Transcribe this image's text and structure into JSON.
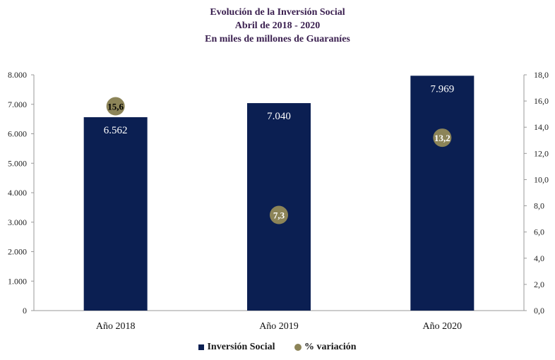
{
  "chart_data": {
    "type": "bar",
    "title": "Evolución de la Inversión Social",
    "subtitle_1": "Abril de 2018 - 2020",
    "subtitle_2": "En miles de millones  de Guaraníes",
    "categories": [
      "Año 2018",
      "Año 2019",
      "Año 2020"
    ],
    "series": [
      {
        "name": "Inversión Social",
        "type": "bar",
        "axis": "left",
        "values": [
          6562,
          7040,
          7969
        ],
        "labels": [
          "6.562",
          "7.040",
          "7.969"
        ],
        "color": "#0b1f52"
      },
      {
        "name": "% variación",
        "type": "scatter",
        "axis": "right",
        "values": [
          15.6,
          7.3,
          13.2
        ],
        "labels": [
          "15,6",
          "7,3",
          "13,2"
        ],
        "color": "#8c8458"
      }
    ],
    "ylim_left": [
      0,
      8000
    ],
    "ylim_right": [
      0,
      18
    ],
    "yticks_left": [
      "0",
      "1.000",
      "2.000",
      "3.000",
      "4.000",
      "5.000",
      "6.000",
      "7.000",
      "8.000"
    ],
    "yticks_right": [
      "0,0",
      "2,0",
      "4,0",
      "6,0",
      "8,0",
      "10,0",
      "12,0",
      "14,0",
      "16,0",
      "18,0"
    ],
    "grid": false,
    "legend_position": "bottom"
  }
}
